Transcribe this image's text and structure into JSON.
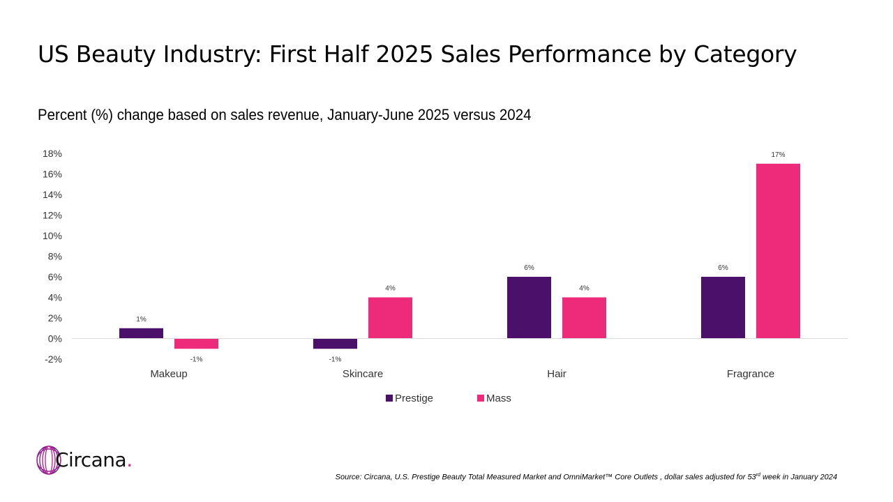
{
  "title": "US Beauty Industry: First Half 2025 Sales Performance by Category",
  "subtitle": "Percent (%) change based on sales revenue, January-June 2025 versus 2024",
  "chart_data": {
    "type": "bar",
    "categories": [
      "Makeup",
      "Skincare",
      "Hair",
      "Fragrance"
    ],
    "series": [
      {
        "name": "Prestige",
        "values": [
          1,
          -1,
          6,
          6
        ],
        "labels": [
          "1%",
          "-1%",
          "6%",
          "6%"
        ],
        "color": "#4b1069"
      },
      {
        "name": "Mass",
        "values": [
          -1,
          4,
          4,
          17
        ],
        "labels": [
          "-1%",
          "4%",
          "4%",
          "17%"
        ],
        "color": "#ee2a7b"
      }
    ],
    "ylim": [
      -2,
      18
    ],
    "yticks": [
      -2,
      0,
      2,
      4,
      6,
      8,
      10,
      12,
      14,
      16,
      18
    ],
    "ytick_labels": [
      "-2%",
      "0%",
      "2%",
      "4%",
      "6%",
      "8%",
      "10%",
      "12%",
      "14%",
      "16%",
      "18%"
    ],
    "grid": false,
    "legend_position": "bottom-center"
  },
  "logo": {
    "text": "Circana",
    "dot": ".",
    "icon": "circana-rings-icon",
    "accent_color": "#e0218a"
  },
  "source": {
    "prefix": "Source: Circana, U.S. Prestige Beauty Total Measured Market and OmniMarket™ Core Outlets , dollar sales adjusted for 53",
    "superscript": "rd",
    "suffix": " week in January 2024"
  }
}
